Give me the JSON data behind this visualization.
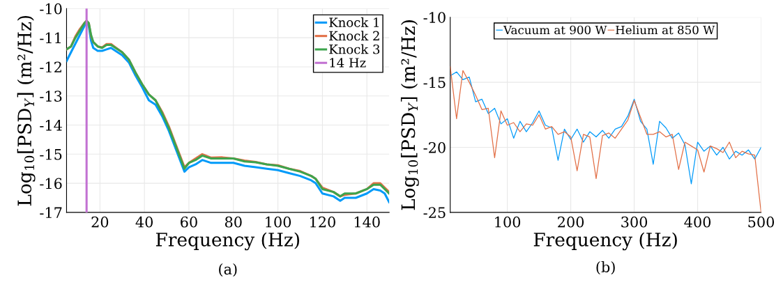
{
  "chart_data": [
    {
      "type": "line",
      "xlabel": "Frequency (Hz)",
      "ylabel": "Log$_{10}$[PSD$_{Y}$] (m²/Hz)",
      "annotations": [
        "(a)"
      ],
      "xlim": [
        5,
        150
      ],
      "xticks": [
        20,
        40,
        60,
        80,
        100,
        120,
        140
      ],
      "ylim": [
        -17,
        -10
      ],
      "yticks": [
        -17,
        -16,
        -15,
        -14,
        -13,
        -12,
        -11,
        -10
      ],
      "grid": true,
      "legend": "top right",
      "line_style": "solid",
      "x": [
        5,
        7,
        9,
        11,
        13,
        14,
        15,
        16,
        17,
        19,
        21,
        23,
        25,
        27,
        30,
        33,
        36,
        39,
        42,
        45,
        48,
        51,
        54,
        56,
        58,
        60,
        63,
        66,
        70,
        75,
        80,
        85,
        90,
        95,
        100,
        105,
        110,
        115,
        117,
        120,
        125,
        128,
        130,
        135,
        140,
        143,
        146,
        148,
        150
      ],
      "series": [
        {
          "name": "Knock 1",
          "color": "#009af9",
          "values": [
            -11.8,
            -11.5,
            -11.2,
            -10.9,
            -10.6,
            -10.45,
            -10.6,
            -11.1,
            -11.35,
            -11.45,
            -11.45,
            -11.4,
            -11.35,
            -11.45,
            -11.6,
            -11.85,
            -12.3,
            -12.7,
            -13.15,
            -13.3,
            -13.7,
            -14.2,
            -14.8,
            -15.2,
            -15.6,
            -15.45,
            -15.35,
            -15.2,
            -15.3,
            -15.3,
            -15.3,
            -15.4,
            -15.45,
            -15.5,
            -15.55,
            -15.65,
            -15.75,
            -15.9,
            -16.0,
            -16.35,
            -16.45,
            -16.6,
            -16.5,
            -16.5,
            -16.35,
            -16.2,
            -16.25,
            -16.35,
            -16.65
          ]
        },
        {
          "name": "Knock 2",
          "color": "#e26f46",
          "values": [
            -11.4,
            -11.3,
            -10.95,
            -10.7,
            -10.5,
            -10.42,
            -10.5,
            -10.95,
            -11.15,
            -11.3,
            -11.33,
            -11.22,
            -11.22,
            -11.33,
            -11.5,
            -11.75,
            -12.2,
            -12.6,
            -12.95,
            -13.15,
            -13.55,
            -14.05,
            -14.65,
            -15.05,
            -15.45,
            -15.3,
            -15.15,
            -15.0,
            -15.12,
            -15.11,
            -15.15,
            -15.22,
            -15.27,
            -15.35,
            -15.38,
            -15.5,
            -15.58,
            -15.75,
            -15.85,
            -16.15,
            -16.3,
            -16.45,
            -16.4,
            -16.35,
            -16.2,
            -16.0,
            -16.0,
            -16.15,
            -16.3
          ]
        },
        {
          "name": "Knock 3",
          "color": "#3da44d",
          "values": [
            -11.4,
            -11.3,
            -11.0,
            -10.75,
            -10.5,
            -10.42,
            -10.5,
            -10.9,
            -11.15,
            -11.3,
            -11.35,
            -11.25,
            -11.25,
            -11.35,
            -11.5,
            -11.75,
            -12.2,
            -12.6,
            -12.95,
            -13.15,
            -13.6,
            -14.1,
            -14.7,
            -15.1,
            -15.5,
            -15.3,
            -15.2,
            -15.05,
            -15.15,
            -15.15,
            -15.15,
            -15.25,
            -15.28,
            -15.35,
            -15.4,
            -15.5,
            -15.6,
            -15.75,
            -15.85,
            -16.2,
            -16.3,
            -16.45,
            -16.35,
            -16.35,
            -16.2,
            -16.05,
            -16.05,
            -16.2,
            -16.35
          ]
        },
        {
          "name": "14 Hz",
          "color": "#c271d2",
          "x": [
            14,
            14
          ],
          "values": [
            -17,
            -10
          ]
        }
      ]
    },
    {
      "type": "line",
      "xlabel": "Frequency (Hz)",
      "ylabel": "Log$_{10}$[PSD$_{Y}$] (m²/Hz)",
      "annotations": [
        "(b)"
      ],
      "xlim": [
        10,
        500
      ],
      "xticks": [
        100,
        200,
        300,
        400,
        500
      ],
      "ylim": [
        -25,
        -10
      ],
      "yticks": [
        -25,
        -20,
        -15,
        -10
      ],
      "grid": true,
      "legend": "top",
      "line_style": "solid",
      "x": [
        10,
        20,
        30,
        40,
        50,
        60,
        70,
        80,
        90,
        100,
        110,
        120,
        130,
        140,
        150,
        160,
        170,
        180,
        190,
        200,
        210,
        220,
        230,
        240,
        250,
        260,
        270,
        280,
        290,
        300,
        310,
        320,
        330,
        340,
        350,
        360,
        370,
        380,
        390,
        400,
        410,
        420,
        430,
        440,
        450,
        460,
        470,
        480,
        490,
        500
      ],
      "series": [
        {
          "name": "Vacuum at 900 W",
          "color": "#009af9",
          "values": [
            -14.5,
            -14.2,
            -14.8,
            -14.6,
            -16.5,
            -16.3,
            -17.4,
            -17.0,
            -18.2,
            -17.8,
            -19.3,
            -18.0,
            -18.8,
            -18.1,
            -17.2,
            -18.3,
            -18.5,
            -21.0,
            -18.6,
            -19.4,
            -18.6,
            -19.6,
            -18.8,
            -19.2,
            -18.7,
            -19.3,
            -18.6,
            -18.4,
            -17.6,
            -16.3,
            -18.0,
            -18.6,
            -21.3,
            -18.0,
            -18.5,
            -19.3,
            -18.9,
            -19.8,
            -22.8,
            -19.6,
            -20.3,
            -19.9,
            -20.6,
            -20.0,
            -20.9,
            -20.3,
            -20.6,
            -20.2,
            -20.9,
            -20.0
          ]
        },
        {
          "name": "Helium at 850 W",
          "color": "#e26f46",
          "values": [
            -13.8,
            -17.8,
            -14.1,
            -15.0,
            -16.0,
            -17.1,
            -17.0,
            -20.8,
            -17.2,
            -18.3,
            -18.1,
            -18.8,
            -18.2,
            -18.3,
            -17.5,
            -18.6,
            -18.4,
            -19.0,
            -18.8,
            -19.2,
            -21.8,
            -19.0,
            -19.2,
            -22.4,
            -19.1,
            -18.9,
            -19.3,
            -18.6,
            -17.9,
            -16.4,
            -17.7,
            -19.0,
            -19.0,
            -18.8,
            -19.2,
            -19.0,
            -21.7,
            -19.6,
            -19.9,
            -20.2,
            -21.9,
            -19.9,
            -20.1,
            -20.4,
            -19.6,
            -20.8,
            -20.3,
            -20.5,
            -20.6,
            -25.0
          ]
        }
      ]
    }
  ]
}
